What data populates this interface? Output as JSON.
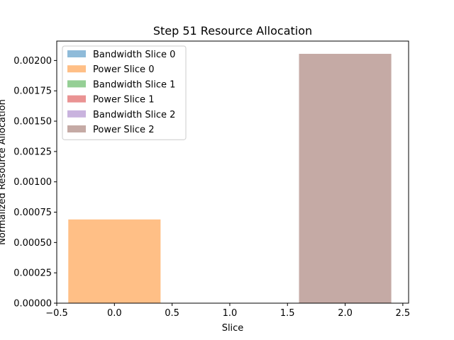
{
  "chart_data": {
    "type": "bar",
    "title": "Step 51 Resource Allocation",
    "xlabel": "Slice",
    "ylabel": "Normalized Resource Allocation",
    "xlim": [
      -0.5,
      2.55
    ],
    "ylim": [
      0,
      0.00216
    ],
    "x_ticks": [
      -0.5,
      0.0,
      0.5,
      1.0,
      1.5,
      2.0,
      2.5
    ],
    "x_tick_labels": [
      "−0.5",
      "0.0",
      "0.5",
      "1.0",
      "1.5",
      "2.0",
      "2.5"
    ],
    "y_ticks": [
      0,
      0.00025,
      0.0005,
      0.00075,
      0.001,
      0.00125,
      0.0015,
      0.00175,
      0.002
    ],
    "y_tick_labels": [
      "0.00000",
      "0.00025",
      "0.00050",
      "0.00075",
      "0.00100",
      "0.00125",
      "0.00150",
      "0.00175",
      "0.00200"
    ],
    "bar_width": 0.8,
    "grid": false,
    "legend_position": "top-left",
    "series": [
      {
        "name": "Bandwidth Slice 0",
        "x": 0,
        "value": 0,
        "color": "#1f77b4",
        "alpha": 0.5
      },
      {
        "name": "Power Slice 0",
        "x": 0,
        "value": 0.00069,
        "color": "#ff7f0e",
        "alpha": 0.5
      },
      {
        "name": "Bandwidth Slice 1",
        "x": 1,
        "value": 0,
        "color": "#2ca02c",
        "alpha": 0.5
      },
      {
        "name": "Power Slice 1",
        "x": 1,
        "value": 0,
        "color": "#d62728",
        "alpha": 0.5
      },
      {
        "name": "Bandwidth Slice 2",
        "x": 2,
        "value": 0,
        "color": "#9467bd",
        "alpha": 0.5
      },
      {
        "name": "Power Slice 2",
        "x": 2,
        "value": 0.002055,
        "color": "#8c564b",
        "alpha": 0.5
      }
    ]
  }
}
